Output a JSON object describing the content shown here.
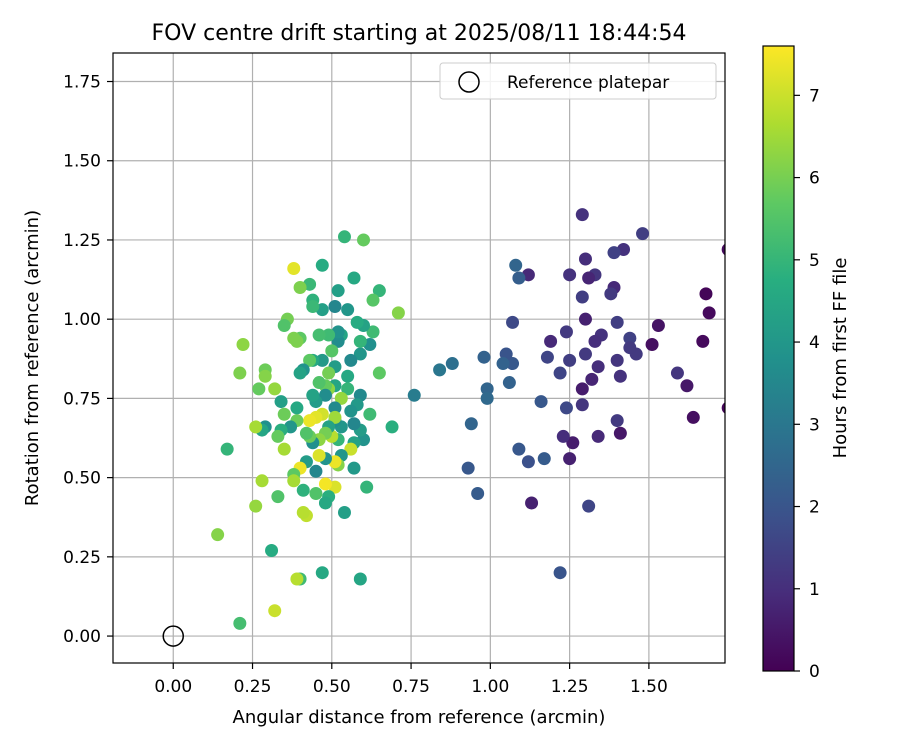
{
  "chart_data": {
    "type": "scatter",
    "title": "FOV centre drift starting at 2025/08/11 18:44:54",
    "xlabel": "Angular distance from reference (arcmin)",
    "ylabel": "Rotation from reference (arcmin)",
    "xlim": [
      -0.19,
      1.74
    ],
    "ylim": [
      -0.085,
      1.84
    ],
    "x_ticks": [
      "0.00",
      "0.25",
      "0.50",
      "0.75",
      "1.00",
      "1.25",
      "1.50"
    ],
    "x_tick_values": [
      0,
      0.25,
      0.5,
      0.75,
      1.0,
      1.25,
      1.5
    ],
    "y_ticks": [
      "0.00",
      "0.25",
      "0.50",
      "0.75",
      "1.00",
      "1.25",
      "1.50",
      "1.75"
    ],
    "y_tick_values": [
      0,
      0.25,
      0.5,
      0.75,
      1.0,
      1.25,
      1.5,
      1.75
    ],
    "grid": true,
    "legend": {
      "position": "top-right",
      "label": "Reference platepar"
    },
    "reference_point": {
      "x": 0.0,
      "y": 0.0
    },
    "colorbar": {
      "label": "Hours from first FF file",
      "colormap": "viridis",
      "range": [
        0,
        7.6
      ],
      "ticks": [
        "0",
        "1",
        "2",
        "3",
        "4",
        "5",
        "6",
        "7"
      ],
      "tick_values": [
        0,
        1,
        2,
        3,
        4,
        5,
        6,
        7
      ]
    },
    "points": [
      [
        1.75,
        0.72,
        0.1
      ],
      [
        1.75,
        1.22,
        0.2
      ],
      [
        1.68,
        1.08,
        0.1
      ],
      [
        1.69,
        1.02,
        0.2
      ],
      [
        1.67,
        0.93,
        0.2
      ],
      [
        1.64,
        0.69,
        0.3
      ],
      [
        1.62,
        0.79,
        0.5
      ],
      [
        1.59,
        0.83,
        1.2
      ],
      [
        1.53,
        0.98,
        0.4
      ],
      [
        1.51,
        0.92,
        0.3
      ],
      [
        1.48,
        1.27,
        1.4
      ],
      [
        1.46,
        0.89,
        1.3
      ],
      [
        1.44,
        0.94,
        1.5
      ],
      [
        1.44,
        0.91,
        1.3
      ],
      [
        1.42,
        1.22,
        1.1
      ],
      [
        1.41,
        0.64,
        0.5
      ],
      [
        1.41,
        0.82,
        1.1
      ],
      [
        1.4,
        0.87,
        1.2
      ],
      [
        1.4,
        0.68,
        1.3
      ],
      [
        1.4,
        0.99,
        1.4
      ],
      [
        1.39,
        1.1,
        0.9
      ],
      [
        1.39,
        1.21,
        1.5
      ],
      [
        1.38,
        1.08,
        1.3
      ],
      [
        1.35,
        0.95,
        1.1
      ],
      [
        1.34,
        0.85,
        1.0
      ],
      [
        1.34,
        0.63,
        0.9
      ],
      [
        1.33,
        1.14,
        1.2
      ],
      [
        1.33,
        0.93,
        1.0
      ],
      [
        1.32,
        0.81,
        0.8
      ],
      [
        1.31,
        0.41,
        1.6
      ],
      [
        1.31,
        1.13,
        0.8
      ],
      [
        1.3,
        1.0,
        0.7
      ],
      [
        1.3,
        1.19,
        1.0
      ],
      [
        1.3,
        0.89,
        1.3
      ],
      [
        1.29,
        1.33,
        1.1
      ],
      [
        1.29,
        1.07,
        1.4
      ],
      [
        1.29,
        0.78,
        0.6
      ],
      [
        1.29,
        0.73,
        1.2
      ],
      [
        1.26,
        0.61,
        0.6
      ],
      [
        1.25,
        0.56,
        0.7
      ],
      [
        1.25,
        0.87,
        1.4
      ],
      [
        1.25,
        1.14,
        1.1
      ],
      [
        1.24,
        0.72,
        1.7
      ],
      [
        1.24,
        0.96,
        1.3
      ],
      [
        1.23,
        0.63,
        1.0
      ],
      [
        1.22,
        0.2,
        2.0
      ],
      [
        1.22,
        0.83,
        1.6
      ],
      [
        1.19,
        0.93,
        0.9
      ],
      [
        1.18,
        0.88,
        1.6
      ],
      [
        1.17,
        0.56,
        2.2
      ],
      [
        1.16,
        0.74,
        2.1
      ],
      [
        1.13,
        0.42,
        0.7
      ],
      [
        1.12,
        0.55,
        1.9
      ],
      [
        1.12,
        1.14,
        0.9
      ],
      [
        1.09,
        0.59,
        2.1
      ],
      [
        1.09,
        1.13,
        2.3
      ],
      [
        1.08,
        1.17,
        2.5
      ],
      [
        1.07,
        0.86,
        2.1
      ],
      [
        1.07,
        0.99,
        1.7
      ],
      [
        1.06,
        0.8,
        2.4
      ],
      [
        1.05,
        0.89,
        2.0
      ],
      [
        1.04,
        0.86,
        2.4
      ],
      [
        0.99,
        0.78,
        2.5
      ],
      [
        0.99,
        0.75,
        2.6
      ],
      [
        0.98,
        0.88,
        2.4
      ],
      [
        0.96,
        0.45,
        2.2
      ],
      [
        0.94,
        0.67,
        2.5
      ],
      [
        0.93,
        0.53,
        2.1
      ],
      [
        0.88,
        0.86,
        2.8
      ],
      [
        0.84,
        0.84,
        3.0
      ],
      [
        0.76,
        0.76,
        3.2
      ],
      [
        0.71,
        1.02,
        6.2
      ],
      [
        0.69,
        0.66,
        4.8
      ],
      [
        0.65,
        1.09,
        5.0
      ],
      [
        0.65,
        0.83,
        5.7
      ],
      [
        0.63,
        1.06,
        5.6
      ],
      [
        0.63,
        0.96,
        5.2
      ],
      [
        0.62,
        0.92,
        3.8
      ],
      [
        0.62,
        0.7,
        5.2
      ],
      [
        0.61,
        0.47,
        5.0
      ],
      [
        0.6,
        0.62,
        3.9
      ],
      [
        0.6,
        1.25,
        5.8
      ],
      [
        0.6,
        0.98,
        4.4
      ],
      [
        0.59,
        0.89,
        4.0
      ],
      [
        0.59,
        0.93,
        5.0
      ],
      [
        0.59,
        0.76,
        3.6
      ],
      [
        0.59,
        0.65,
        4.2
      ],
      [
        0.59,
        0.18,
        4.5
      ],
      [
        0.58,
        0.73,
        4.1
      ],
      [
        0.58,
        0.99,
        4.7
      ],
      [
        0.57,
        0.53,
        4.1
      ],
      [
        0.57,
        0.67,
        3.5
      ],
      [
        0.57,
        0.61,
        4.4
      ],
      [
        0.57,
        1.13,
        4.6
      ],
      [
        0.56,
        0.59,
        7.0
      ],
      [
        0.56,
        0.87,
        3.6
      ],
      [
        0.56,
        0.71,
        3.9
      ],
      [
        0.55,
        1.03,
        4.0
      ],
      [
        0.55,
        0.82,
        4.6
      ],
      [
        0.55,
        0.78,
        5.0
      ],
      [
        0.54,
        1.26,
        5.0
      ],
      [
        0.54,
        0.39,
        4.3
      ],
      [
        0.53,
        0.75,
        6.4
      ],
      [
        0.53,
        0.66,
        4.0
      ],
      [
        0.53,
        0.57,
        4.0
      ],
      [
        0.53,
        0.95,
        4.5
      ],
      [
        0.52,
        0.93,
        3.7
      ],
      [
        0.52,
        0.96,
        3.9
      ],
      [
        0.52,
        0.54,
        6.2
      ],
      [
        0.52,
        0.62,
        5.0
      ],
      [
        0.52,
        1.09,
        4.3
      ],
      [
        0.51,
        0.55,
        7.4
      ],
      [
        0.51,
        0.47,
        7.2
      ],
      [
        0.51,
        0.72,
        3.6
      ],
      [
        0.51,
        0.68,
        3.8
      ],
      [
        0.51,
        1.04,
        3.5
      ],
      [
        0.51,
        0.85,
        4.2
      ],
      [
        0.51,
        0.79,
        4.5
      ],
      [
        0.51,
        0.69,
        6.5
      ],
      [
        0.5,
        0.63,
        6.8
      ],
      [
        0.5,
        0.9,
        5.6
      ],
      [
        0.49,
        0.78,
        6.3
      ],
      [
        0.49,
        0.44,
        4.8
      ],
      [
        0.49,
        0.95,
        5.2
      ],
      [
        0.49,
        0.83,
        6.0
      ],
      [
        0.49,
        0.66,
        4.4
      ],
      [
        0.48,
        0.79,
        5.8
      ],
      [
        0.48,
        0.64,
        6.0
      ],
      [
        0.48,
        0.56,
        3.9
      ],
      [
        0.48,
        0.48,
        7.5
      ],
      [
        0.48,
        0.42,
        4.6
      ],
      [
        0.48,
        0.76,
        3.7
      ],
      [
        0.47,
        0.2,
        4.6
      ],
      [
        0.47,
        1.03,
        4.3
      ],
      [
        0.47,
        0.7,
        7.1
      ],
      [
        0.47,
        1.17,
        4.7
      ],
      [
        0.47,
        0.87,
        4.1
      ],
      [
        0.46,
        0.57,
        7.2
      ],
      [
        0.46,
        0.95,
        5.3
      ],
      [
        0.46,
        0.8,
        5.5
      ],
      [
        0.46,
        0.62,
        6.3
      ],
      [
        0.45,
        0.74,
        4.2
      ],
      [
        0.45,
        0.52,
        3.5
      ],
      [
        0.45,
        0.45,
        5.5
      ],
      [
        0.45,
        0.69,
        7.3
      ],
      [
        0.44,
        1.06,
        4.9
      ],
      [
        0.44,
        0.87,
        4.6
      ],
      [
        0.44,
        0.61,
        3.8
      ],
      [
        0.44,
        0.76,
        4.4
      ],
      [
        0.44,
        1.04,
        5.1
      ],
      [
        0.43,
        0.63,
        5.9
      ],
      [
        0.43,
        1.11,
        5.1
      ],
      [
        0.43,
        0.68,
        7.4
      ],
      [
        0.43,
        0.87,
        5.7
      ],
      [
        0.42,
        0.55,
        4.2
      ],
      [
        0.42,
        0.38,
        6.9
      ],
      [
        0.42,
        0.64,
        5.5
      ],
      [
        0.41,
        0.39,
        6.8
      ],
      [
        0.41,
        0.46,
        4.9
      ],
      [
        0.41,
        0.84,
        3.9
      ],
      [
        0.4,
        1.1,
        6.1
      ],
      [
        0.4,
        0.83,
        4.4
      ],
      [
        0.4,
        0.53,
        7.4
      ],
      [
        0.4,
        0.94,
        5.7
      ],
      [
        0.4,
        0.18,
        5.2
      ],
      [
        0.39,
        0.93,
        6.1
      ],
      [
        0.39,
        0.68,
        5.9
      ],
      [
        0.39,
        0.72,
        4.6
      ],
      [
        0.39,
        0.18,
        6.8
      ],
      [
        0.38,
        0.51,
        5.7
      ],
      [
        0.38,
        1.16,
        7.3
      ],
      [
        0.38,
        0.94,
        6.1
      ],
      [
        0.38,
        0.49,
        6.6
      ],
      [
        0.37,
        0.66,
        4.0
      ],
      [
        0.36,
        1.0,
        6.0
      ],
      [
        0.35,
        0.98,
        5.5
      ],
      [
        0.35,
        0.7,
        5.9
      ],
      [
        0.35,
        0.59,
        6.6
      ],
      [
        0.34,
        0.65,
        4.8
      ],
      [
        0.34,
        0.74,
        4.3
      ],
      [
        0.33,
        0.63,
        5.8
      ],
      [
        0.33,
        0.44,
        5.5
      ],
      [
        0.32,
        0.08,
        7.0
      ],
      [
        0.32,
        0.78,
        6.4
      ],
      [
        0.31,
        0.27,
        4.7
      ],
      [
        0.29,
        0.66,
        3.8
      ],
      [
        0.29,
        0.84,
        5.9
      ],
      [
        0.29,
        0.82,
        6.2
      ],
      [
        0.28,
        0.65,
        4.5
      ],
      [
        0.28,
        0.49,
        6.6
      ],
      [
        0.27,
        0.78,
        5.8
      ],
      [
        0.26,
        0.41,
        6.4
      ],
      [
        0.26,
        0.66,
        6.6
      ],
      [
        0.22,
        0.92,
        6.3
      ],
      [
        0.21,
        0.83,
        6.1
      ],
      [
        0.21,
        0.04,
        5.3
      ],
      [
        0.17,
        0.59,
        5.0
      ],
      [
        0.14,
        0.32,
        6.2
      ]
    ]
  }
}
